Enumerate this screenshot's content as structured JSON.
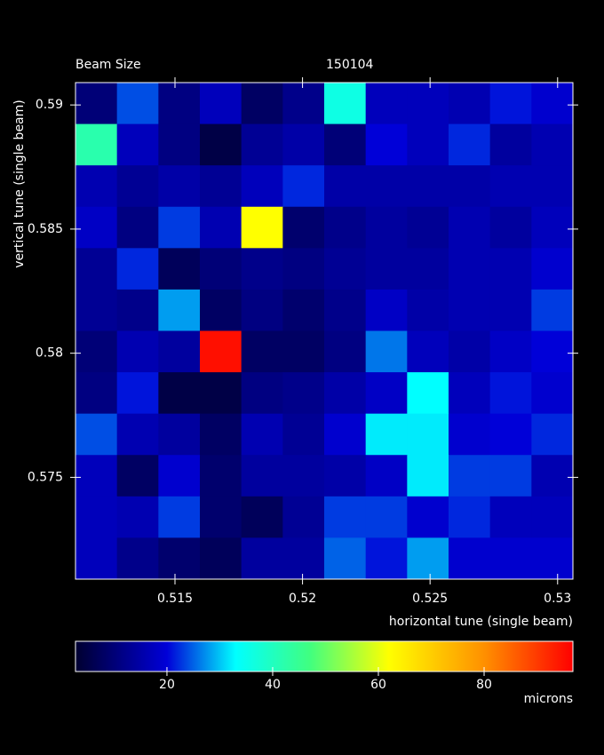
{
  "chart_data": {
    "type": "heatmap",
    "title": "Beam Size",
    "subtitle": "150104",
    "xlabel": "horizontal tune (single beam)",
    "ylabel": "vertical tune (single beam)",
    "xlim": [
      0.5111,
      0.5306
    ],
    "xticks": [
      0.515,
      0.52,
      0.525,
      0.53
    ],
    "ylim": [
      0.5709,
      0.5909
    ],
    "yticks": [
      0.575,
      0.58,
      0.585,
      0.59
    ],
    "z": [
      [
        10,
        24,
        11,
        17,
        8,
        12,
        36,
        17,
        17,
        16,
        21,
        19
      ],
      [
        42,
        17,
        11,
        5,
        13,
        15,
        10,
        20,
        17,
        22,
        14,
        16
      ],
      [
        16,
        13,
        15,
        13,
        17,
        22,
        15,
        15,
        15,
        15,
        16,
        16
      ],
      [
        18,
        11,
        23,
        16,
        62,
        9,
        12,
        14,
        13,
        16,
        14,
        17
      ],
      [
        13,
        22,
        7,
        10,
        12,
        11,
        13,
        14,
        14,
        16,
        16,
        19
      ],
      [
        13,
        12,
        28,
        8,
        11,
        9,
        12,
        18,
        15,
        16,
        16,
        23
      ],
      [
        10,
        16,
        14,
        95,
        8,
        8,
        11,
        26,
        17,
        15,
        18,
        20
      ],
      [
        11,
        21,
        5,
        5,
        11,
        12,
        15,
        18,
        33,
        17,
        21,
        19
      ],
      [
        24,
        16,
        14,
        8,
        16,
        13,
        19,
        32,
        32,
        19,
        20,
        22
      ],
      [
        17,
        8,
        19,
        9,
        14,
        14,
        15,
        18,
        32,
        23,
        23,
        16
      ],
      [
        17,
        16,
        23,
        9,
        7,
        13,
        23,
        23,
        19,
        22,
        17,
        17
      ],
      [
        17,
        12,
        9,
        7,
        14,
        14,
        25,
        21,
        28,
        19,
        19,
        19
      ]
    ],
    "colorbar": {
      "label": "microns",
      "lim": [
        2.7,
        96.8
      ],
      "ticks": [
        20,
        40,
        60,
        80
      ]
    },
    "colorscale": [
      [
        2.7,
        "#000030"
      ],
      [
        20,
        "#0000d8"
      ],
      [
        33,
        "#00ffff"
      ],
      [
        47,
        "#40ff80"
      ],
      [
        62,
        "#ffff00"
      ],
      [
        80,
        "#ff9000"
      ],
      [
        96.8,
        "#ff0000"
      ]
    ]
  }
}
